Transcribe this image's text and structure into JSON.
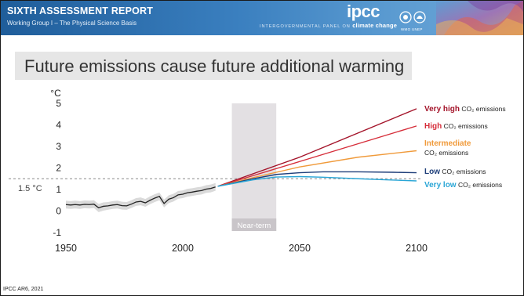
{
  "header": {
    "title": "SIXTH ASSESSMENT REPORT",
    "subtitle": "Working Group I – The Physical Science Basis",
    "panel_prefix": "INTERGOVERNMENTAL PANEL ON",
    "panel_name": "climate change",
    "logo": "ipcc",
    "org_labels": "WMO  UNEP"
  },
  "headline": "Future emissions cause future additional warming",
  "source": "IPCC AR6, 2021",
  "chart_data": {
    "type": "line",
    "title": "Future emissions cause future additional warming",
    "ylabel": "°C",
    "xlim": [
      1950,
      2100
    ],
    "ylim": [
      -1,
      5
    ],
    "x_ticks": [
      "1950",
      "2000",
      "2050",
      "2100"
    ],
    "y_ticks": [
      "-1",
      "0",
      "1",
      "2",
      "3",
      "4",
      "5"
    ],
    "reference_line": {
      "value": 1.5,
      "label": "1.5 °C",
      "color": "#888888"
    },
    "near_term": {
      "start": 2021,
      "end": 2040,
      "label": "Near-term",
      "color": "#e3e0e3"
    },
    "historical": {
      "color": "#222222",
      "band_color": "#d4d4d4",
      "x": [
        1950,
        1952,
        1954,
        1956,
        1958,
        1960,
        1962,
        1964,
        1966,
        1968,
        1970,
        1972,
        1974,
        1976,
        1978,
        1980,
        1982,
        1984,
        1986,
        1988,
        1990,
        1992,
        1994,
        1996,
        1998,
        2000,
        2002,
        2004,
        2006,
        2008,
        2010,
        2012,
        2014
      ],
      "y": [
        0.3,
        0.28,
        0.3,
        0.28,
        0.31,
        0.3,
        0.32,
        0.15,
        0.22,
        0.24,
        0.28,
        0.3,
        0.25,
        0.24,
        0.32,
        0.42,
        0.45,
        0.38,
        0.5,
        0.6,
        0.68,
        0.35,
        0.55,
        0.62,
        0.75,
        0.78,
        0.85,
        0.88,
        0.92,
        0.95,
        1.02,
        1.05,
        1.12
      ],
      "band_low": [
        0.12,
        0.1,
        0.12,
        0.1,
        0.13,
        0.12,
        0.14,
        -0.05,
        0.02,
        0.06,
        0.1,
        0.12,
        0.07,
        0.06,
        0.14,
        0.24,
        0.27,
        0.2,
        0.32,
        0.42,
        0.5,
        0.17,
        0.37,
        0.44,
        0.57,
        0.6,
        0.67,
        0.7,
        0.74,
        0.77,
        0.84,
        0.87,
        0.94
      ],
      "band_high": [
        0.48,
        0.46,
        0.48,
        0.46,
        0.49,
        0.48,
        0.5,
        0.33,
        0.4,
        0.42,
        0.46,
        0.48,
        0.43,
        0.42,
        0.5,
        0.6,
        0.63,
        0.56,
        0.68,
        0.78,
        0.86,
        0.53,
        0.73,
        0.8,
        0.93,
        0.96,
        1.03,
        1.06,
        1.1,
        1.13,
        1.2,
        1.23,
        1.3
      ]
    },
    "series": [
      {
        "name": "Very high CO₂ emissions",
        "label_main": "Very high",
        "label_rest": " CO₂ emissions",
        "color": "#a4142a",
        "x": [
          2015,
          2050,
          2100
        ],
        "y": [
          1.15,
          2.5,
          4.75
        ]
      },
      {
        "name": "High CO₂ emissions",
        "label_main": "High",
        "label_rest": " CO₂ emissions",
        "color": "#d62e3a",
        "x": [
          2015,
          2050,
          2100
        ],
        "y": [
          1.15,
          2.3,
          3.95
        ]
      },
      {
        "name": "Intermediate CO₂ emissions",
        "label_main": "Intermediate",
        "label_rest": "CO₂ emissions",
        "color": "#f09a3a",
        "x": [
          2015,
          2030,
          2050,
          2075,
          2100
        ],
        "y": [
          1.15,
          1.55,
          2.05,
          2.5,
          2.8
        ]
      },
      {
        "name": "Low CO₂ emissions",
        "label_main": "Low",
        "label_rest": " CO₂ emissions",
        "color": "#1f3f7a",
        "x": [
          2015,
          2030,
          2040,
          2050,
          2060,
          2075,
          2090,
          2100
        ],
        "y": [
          1.15,
          1.5,
          1.7,
          1.78,
          1.82,
          1.82,
          1.8,
          1.78
        ]
      },
      {
        "name": "Very low CO₂ emissions",
        "label_main": "Very low",
        "label_rest": " CO₂ emissions",
        "color": "#2aa6d6",
        "x": [
          2015,
          2030,
          2040,
          2050,
          2060,
          2075,
          2090,
          2100
        ],
        "y": [
          1.15,
          1.45,
          1.58,
          1.6,
          1.57,
          1.5,
          1.44,
          1.4
        ]
      }
    ]
  }
}
